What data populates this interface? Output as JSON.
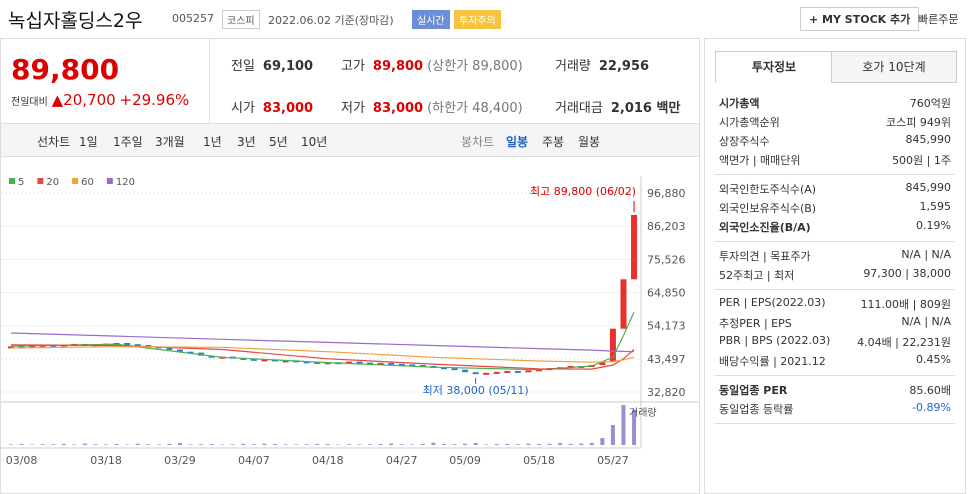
{
  "header": {
    "title": "녹십자홀딩스2우",
    "code": "005257",
    "market": "코스피",
    "date": "2022.06.02 기준(장마감)",
    "badges": [
      "실시간",
      "투자주의"
    ],
    "buttons": [
      "+ MY STOCK 추가",
      "빠른주문"
    ]
  },
  "price": {
    "current": "89,800",
    "change_label": "전일대비",
    "change": "▲20,700",
    "rate": "+29.96%"
  },
  "stats": [
    {
      "label": "전일",
      "value": "69,100"
    },
    {
      "label": "고가",
      "value": "89,800",
      "extra": "(상한가 89,800)"
    },
    {
      "label": "거래량",
      "value": "22,956"
    },
    {
      "label": "시가",
      "value": "83,000"
    },
    {
      "label": "저가",
      "value": "83,000",
      "extra": "(하한가 48,400)"
    },
    {
      "label": "거래대금",
      "value": "2,016 백만"
    }
  ],
  "periods": {
    "line_label": "선차트",
    "line": [
      "1일",
      "1주일",
      "3개월",
      "1년",
      "3년",
      "5년",
      "10년"
    ],
    "candle_label": "봉차트",
    "candle": [
      "일봉",
      "주봉",
      "월봉"
    ]
  },
  "chart_data": {
    "type": "candlestick",
    "categories": [
      null,
      "03/08",
      null,
      null,
      null,
      null,
      null,
      null,
      null,
      "03/18",
      null,
      null,
      null,
      null,
      null,
      null,
      "03/29",
      null,
      null,
      null,
      null,
      null,
      null,
      "04/07",
      null,
      null,
      null,
      null,
      null,
      null,
      "04/18",
      null,
      null,
      null,
      null,
      null,
      null,
      "04/27",
      null,
      null,
      null,
      null,
      null,
      "05/09",
      null,
      null,
      null,
      null,
      null,
      null,
      "05/18",
      null,
      null,
      null,
      null,
      null,
      null,
      "05/27",
      null,
      null
    ],
    "close": [
      47500,
      47200,
      47800,
      48000,
      47900,
      48100,
      48300,
      48000,
      48200,
      48400,
      48600,
      48200,
      47900,
      47500,
      47000,
      46500,
      45800,
      45500,
      44500,
      44000,
      44200,
      43800,
      43500,
      43000,
      43300,
      42800,
      43000,
      42700,
      42500,
      42300,
      42400,
      42100,
      42600,
      42300,
      42000,
      42200,
      41900,
      41700,
      41500,
      41200,
      40800,
      40500,
      40000,
      39200,
      38600,
      39000,
      39300,
      39600,
      39400,
      39800,
      40100,
      40500,
      40800,
      41200,
      41000,
      41500,
      42500,
      53200,
      69100,
      89800
    ],
    "volume": [
      400,
      600,
      300,
      500,
      450,
      700,
      350,
      900,
      500,
      400,
      600,
      300,
      800,
      500,
      350,
      700,
      1200,
      400,
      500,
      600,
      300,
      450,
      800,
      500,
      900,
      600,
      400,
      350,
      500,
      700,
      600,
      300,
      500,
      400,
      450,
      600,
      900,
      500,
      350,
      700,
      1500,
      600,
      500,
      800,
      1300,
      400,
      600,
      700,
      500,
      900,
      600,
      800,
      1200,
      700,
      900,
      1400,
      4500,
      13000,
      26000,
      22956
    ],
    "up_color": "#e8312d",
    "down_color": "#2a7fd6",
    "ma": [
      {
        "name": "5",
        "color": "#4caf50",
        "x": [
          0,
          10,
          20,
          30,
          40,
          50,
          55,
          57,
          58,
          59
        ],
        "values": [
          47600,
          48200,
          44000,
          42300,
          40800,
          40000,
          41200,
          44000,
          51000,
          58500
        ]
      },
      {
        "name": "20",
        "color": "#e04a3f",
        "x": [
          0,
          10,
          20,
          30,
          40,
          50,
          55,
          57,
          58,
          59
        ],
        "values": [
          48000,
          47800,
          46500,
          43500,
          41800,
          40300,
          40200,
          41500,
          43500,
          46500
        ]
      },
      {
        "name": "60",
        "color": "#f0a040",
        "x": [
          0,
          10,
          20,
          30,
          40,
          50,
          55,
          57,
          58,
          59
        ],
        "values": [
          47000,
          47400,
          47200,
          45800,
          44000,
          42800,
          42400,
          42600,
          43200,
          44000
        ]
      },
      {
        "name": "120",
        "color": "#9c6bc9",
        "x": [
          0,
          10,
          20,
          30,
          40,
          50,
          55,
          57,
          58,
          59
        ],
        "values": [
          51800,
          50800,
          49800,
          48800,
          47800,
          46800,
          46300,
          46000,
          45900,
          45800
        ]
      }
    ],
    "volume_label": "거래량",
    "ylim": [
      32820,
      96880
    ],
    "yticks": [
      {
        "value": 32820,
        "label": "32,820"
      },
      {
        "value": 43497,
        "label": "43,497"
      },
      {
        "value": 54173,
        "label": "54,173"
      },
      {
        "value": 64850,
        "label": "64,850"
      },
      {
        "value": 75526,
        "label": "75,526"
      },
      {
        "value": 86203,
        "label": "86,203"
      },
      {
        "value": 96880,
        "label": "96,880"
      }
    ],
    "annotations": [
      {
        "text": "최고 89,800 (06/02)",
        "index": 59,
        "value": 89800
      },
      {
        "text": "최저 38,000 (05/11)",
        "index": 44,
        "value": 38000
      }
    ],
    "grid": true
  },
  "side": {
    "tabs": [
      "투자정보",
      "호가 10단계"
    ],
    "groups": [
      [
        {
          "label": "시가총액",
          "value": "760억원"
        },
        {
          "label": "시가총액순위",
          "value": "코스피 949위"
        },
        {
          "label": "상장주식수",
          "value": "845,990"
        },
        {
          "label": "액면가 | 매매단위",
          "value": "500원 | 1주"
        }
      ],
      [
        {
          "label": "외국인한도주식수(A)",
          "value": "845,990"
        },
        {
          "label": "외국인보유주식수(B)",
          "value": "1,595"
        },
        {
          "label": "외국인소진율(B/A)",
          "value": "0.19%"
        }
      ],
      [
        {
          "label": "투자의견 | 목표주가",
          "value": "N/A | N/A"
        },
        {
          "label": "52주최고 | 최저",
          "value": "97,300 | 38,000"
        }
      ],
      [
        {
          "label": "PER | EPS(2022.03)",
          "value": "111.00배 | 809원"
        },
        {
          "label": "추정PER | EPS",
          "value": "N/A | N/A"
        },
        {
          "label": "PBR | BPS (2022.03)",
          "value": "4.04배 | 22,231원"
        },
        {
          "label": "배당수익률 | 2021.12",
          "value": "0.45%"
        }
      ],
      [
        {
          "label": "동일업종 PER",
          "value": "85.60배"
        },
        {
          "label": "동일업종 등락률",
          "value": "-0.89%"
        }
      ]
    ]
  }
}
